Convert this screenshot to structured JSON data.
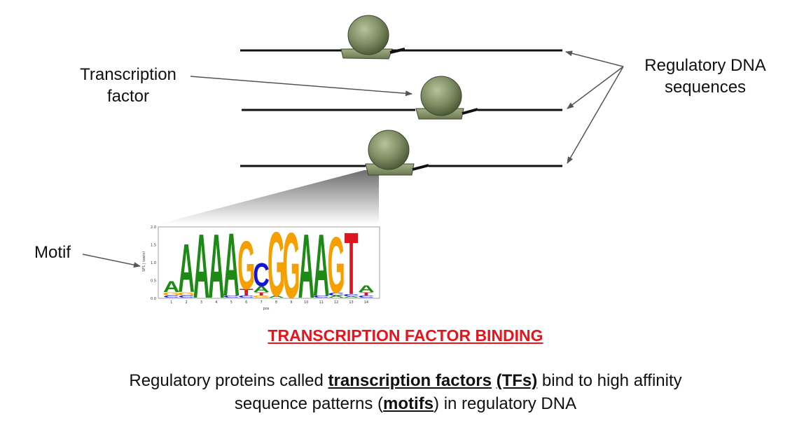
{
  "labels": {
    "transcription_factor_line1": "Transcription",
    "transcription_factor_line2": "factor",
    "regulatory_line1": "Regulatory DNA",
    "regulatory_line2": "sequences",
    "motif": "Motif"
  },
  "logo": {
    "y_axis_label": "SP1 | tswinl",
    "x_axis_label": "pos",
    "y_ticks": [
      "2.0",
      "1.5",
      "1.0",
      "0.5",
      "0.0"
    ],
    "x_ticks": [
      "1",
      "2",
      "3",
      "4",
      "5",
      "6",
      "7",
      "8",
      "9",
      "10",
      "11",
      "12",
      "13",
      "14"
    ],
    "letters_main": [
      "A",
      "A",
      "A",
      "A",
      "A",
      "G",
      "C",
      "G",
      "G",
      "A",
      "A",
      "G",
      "T",
      "A"
    ],
    "colors": {
      "A": "#1e8a16",
      "C": "#1414d4",
      "G": "#f5a000",
      "T": "#e0141e"
    }
  },
  "caption": {
    "title": "TRANSCRIPTION FACTOR BINDING",
    "line1_pre": "Regulatory proteins called ",
    "line1_tf": "transcription factors",
    "line1_space": " ",
    "line1_tfs": "(TFs)",
    "line1_post": " bind to high affinity",
    "line2_pre": "sequence patterns (",
    "line2_motifs": "motifs",
    "line2_post": ") in regulatory DNA"
  },
  "colors": {
    "protein_dark": "#6b7a52",
    "protein_light": "#b8c39a",
    "dna": "#111111"
  }
}
